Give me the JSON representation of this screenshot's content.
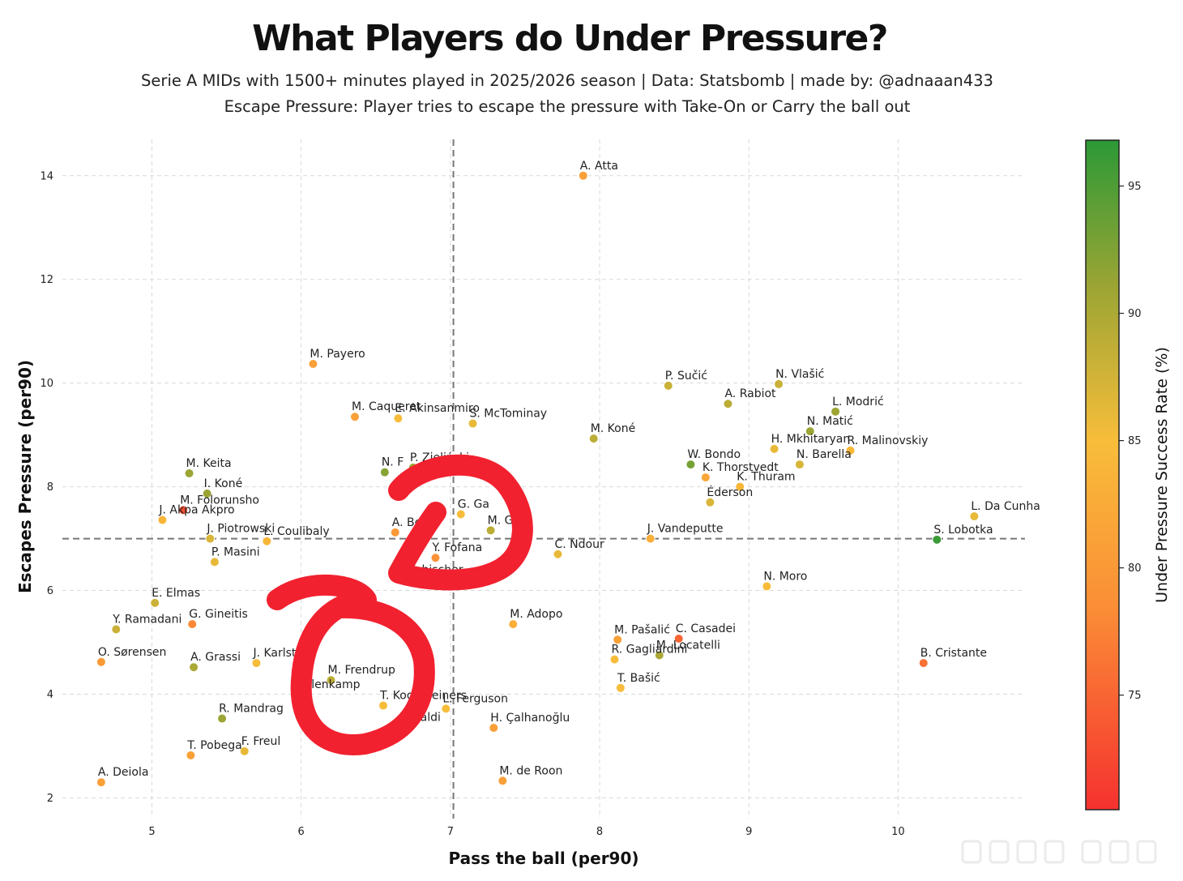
{
  "chart_data": {
    "type": "scatter",
    "title": "What Players do Under Pressure?",
    "subtitle": "Serie A MIDs with 1500+ minutes played in 2025/2026 season | Data: Statsbomb | made by: @adnaaan433",
    "subtitle2": "Escape Pressure: Player tries to escape the pressure with Take-On or Carry the ball out",
    "xlabel": "Pass the ball (per90)",
    "ylabel": "Escapes Pressure (per90)",
    "colorbar_label": "Under Pressure Success Rate (%)",
    "xlim": [
      4.4,
      10.85
    ],
    "ylim": [
      1.6,
      14.7
    ],
    "xticks": [
      "5",
      "6",
      "7",
      "8",
      "9",
      "10"
    ],
    "yticks": [
      "2",
      "4",
      "6",
      "8",
      "10",
      "12",
      "14"
    ],
    "color_range": [
      70.5,
      96.8
    ],
    "colorbar_ticks": [
      "75",
      "80",
      "85",
      "90",
      "95"
    ],
    "grid": true,
    "avg_x": 7.02,
    "avg_y": 7.0,
    "points": [
      {
        "name": "A. Atta",
        "x": 7.89,
        "y": 14.0,
        "rate": 81
      },
      {
        "name": "M. Payero",
        "x": 6.08,
        "y": 10.37,
        "rate": 81
      },
      {
        "name": "M. Caqueret",
        "x": 6.36,
        "y": 9.35,
        "rate": 81
      },
      {
        "name": "E. Akinsanmiro",
        "x": 6.65,
        "y": 9.32,
        "rate": 85
      },
      {
        "name": "S. McTominay",
        "x": 7.15,
        "y": 9.22,
        "rate": 86
      },
      {
        "name": "P. Sučić",
        "x": 8.46,
        "y": 9.95,
        "rate": 88
      },
      {
        "name": "N. Vlašić",
        "x": 9.2,
        "y": 9.98,
        "rate": 88
      },
      {
        "name": "L. Modrić",
        "x": 9.58,
        "y": 9.45,
        "rate": 91
      },
      {
        "name": "A. Rabiot",
        "x": 8.86,
        "y": 9.6,
        "rate": 89
      },
      {
        "name": "N. Matić",
        "x": 9.41,
        "y": 9.07,
        "rate": 91
      },
      {
        "name": "M. Koné",
        "x": 7.96,
        "y": 8.93,
        "rate": 89
      },
      {
        "name": "R. Malinovskiy",
        "x": 9.68,
        "y": 8.7,
        "rate": 84
      },
      {
        "name": "H. Mkhitaryan",
        "x": 9.17,
        "y": 8.73,
        "rate": 86
      },
      {
        "name": "W. Bondo",
        "x": 8.61,
        "y": 8.43,
        "rate": 93
      },
      {
        "name": "K. Thorstvedt",
        "x": 8.71,
        "y": 8.18,
        "rate": 82
      },
      {
        "name": "N. Barella",
        "x": 9.34,
        "y": 8.43,
        "rate": 87
      },
      {
        "name": "K. Thuram",
        "x": 8.94,
        "y": 8.0,
        "rate": 84
      },
      {
        "name": "Éderson",
        "x": 8.74,
        "y": 7.7,
        "rate": 87
      },
      {
        "name": "M. Keita",
        "x": 5.25,
        "y": 8.26,
        "rate": 91
      },
      {
        "name": "I. Koné",
        "x": 5.37,
        "y": 7.87,
        "rate": 91
      },
      {
        "name": "M. Folorunsho",
        "x": 5.21,
        "y": 7.55,
        "rate": 73
      },
      {
        "name": "J. Akpa Akpro",
        "x": 5.07,
        "y": 7.36,
        "rate": 84
      },
      {
        "name": "J. Piotrowski",
        "x": 5.39,
        "y": 7.0,
        "rate": 87
      },
      {
        "name": "L. Coulibaly",
        "x": 5.77,
        "y": 6.95,
        "rate": 84
      },
      {
        "name": "P. Masini",
        "x": 5.42,
        "y": 6.55,
        "rate": 86
      },
      {
        "name": "P. Zieliński",
        "x": 6.75,
        "y": 8.37,
        "rate": 91
      },
      {
        "name": "N. F",
        "x": 6.56,
        "y": 8.28,
        "rate": 92
      },
      {
        "name": "G. Ga",
        "x": 7.07,
        "y": 7.47,
        "rate": 85
      },
      {
        "name": "A. Be",
        "x": 6.63,
        "y": 7.12,
        "rate": 80
      },
      {
        "name": "M. Gu",
        "x": 7.27,
        "y": 7.16,
        "rate": 89
      },
      {
        "name": "Y. Fofana",
        "x": 6.9,
        "y": 6.63,
        "rate": 79
      },
      {
        "name": "C. Ndour",
        "x": 7.72,
        "y": 6.7,
        "rate": 86
      },
      {
        "name": "J. Vandeputte",
        "x": 8.34,
        "y": 7.0,
        "rate": 83
      },
      {
        "name": "L. Da Cunha",
        "x": 10.51,
        "y": 7.43,
        "rate": 86
      },
      {
        "name": "S. Lobotka",
        "x": 10.26,
        "y": 6.98,
        "rate": 96
      },
      {
        "name": "N. Moro",
        "x": 9.12,
        "y": 6.08,
        "rate": 85
      },
      {
        "name": "E. Elmas",
        "x": 5.02,
        "y": 5.76,
        "rate": 88
      },
      {
        "name": "Y. Ramadani",
        "x": 4.76,
        "y": 5.25,
        "rate": 88
      },
      {
        "name": "G. Gineitis",
        "x": 5.27,
        "y": 5.35,
        "rate": 78
      },
      {
        "name": "O. Sørensen",
        "x": 4.66,
        "y": 4.62,
        "rate": 80
      },
      {
        "name": "A. Grassi",
        "x": 5.28,
        "y": 4.52,
        "rate": 90
      },
      {
        "name": "J. Karlstr",
        "x": 5.7,
        "y": 4.6,
        "rate": 85
      },
      {
        "name": "M. Frendrup",
        "x": 6.2,
        "y": 4.27,
        "rate": 89
      },
      {
        "name": "T. Koopmeiners",
        "x": 6.55,
        "y": 3.78,
        "rate": 85
      },
      {
        "name": "L. Ferguson",
        "x": 6.97,
        "y": 3.72,
        "rate": 85
      },
      {
        "name": "M. Adopo",
        "x": 7.42,
        "y": 5.35,
        "rate": 83
      },
      {
        "name": "M. Pašalić",
        "x": 8.12,
        "y": 5.05,
        "rate": 81
      },
      {
        "name": "C. Casadei",
        "x": 8.53,
        "y": 5.07,
        "rate": 75
      },
      {
        "name": "M. Locatelli",
        "x": 8.4,
        "y": 4.75,
        "rate": 90
      },
      {
        "name": "R. Gagliardini",
        "x": 8.1,
        "y": 4.67,
        "rate": 85
      },
      {
        "name": "T. Bašić",
        "x": 8.14,
        "y": 4.12,
        "rate": 85
      },
      {
        "name": "B. Cristante",
        "x": 10.17,
        "y": 4.6,
        "rate": 76
      },
      {
        "name": "R. Mandrag",
        "x": 5.47,
        "y": 3.53,
        "rate": 91
      },
      {
        "name": "H. Çalhanoğlu",
        "x": 7.29,
        "y": 3.35,
        "rate": 81
      },
      {
        "name": "T. Pobega",
        "x": 5.26,
        "y": 2.82,
        "rate": 81
      },
      {
        "name": "F. Freul",
        "x": 5.62,
        "y": 2.9,
        "rate": 86
      },
      {
        "name": "M. de Roon",
        "x": 7.35,
        "y": 2.33,
        "rate": 81
      },
      {
        "name": "A. Deiola",
        "x": 4.66,
        "y": 2.3,
        "rate": 81
      }
    ],
    "labels_only": [
      {
        "text": "kelenkamp",
        "x": 5.98,
        "y": 4.12
      },
      {
        "text": "rabischer",
        "x": 6.73,
        "y": 6.33
      },
      {
        "text": "ntaldi",
        "x": 6.72,
        "y": 3.48
      }
    ]
  }
}
